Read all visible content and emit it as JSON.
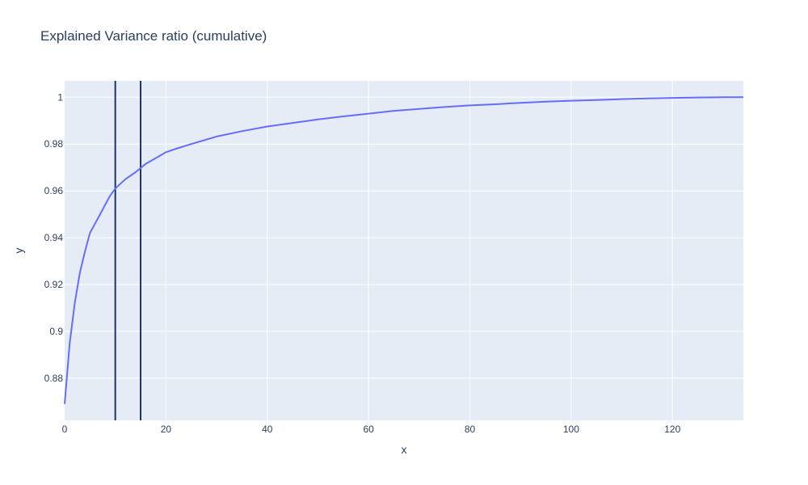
{
  "chart_data": {
    "type": "line",
    "title": "Explained Variance ratio (cumulative)",
    "xlabel": "x",
    "ylabel": "y",
    "xlim": [
      0,
      134
    ],
    "ylim": [
      0.862,
      1.007
    ],
    "grid": true,
    "x_ticks": [
      0,
      20,
      40,
      60,
      80,
      100,
      120
    ],
    "y_ticks": [
      0.88,
      0.9,
      0.92,
      0.94,
      0.96,
      0.98,
      1
    ],
    "y_tick_labels": [
      "0.88",
      "0.9",
      "0.92",
      "0.94",
      "0.96",
      "0.98",
      "1"
    ],
    "vlines": [
      10,
      15
    ],
    "series": [
      {
        "color": "#636efa",
        "x": [
          0,
          1,
          2,
          3,
          4,
          5,
          6,
          7,
          8,
          9,
          10,
          12,
          14,
          16,
          18,
          20,
          22,
          25,
          30,
          35,
          40,
          45,
          50,
          55,
          60,
          65,
          70,
          75,
          80,
          85,
          90,
          95,
          100,
          105,
          110,
          115,
          120,
          125,
          130,
          134
        ],
        "y": [
          0.869,
          0.895,
          0.912,
          0.925,
          0.934,
          0.942,
          0.946,
          0.95,
          0.954,
          0.958,
          0.961,
          0.965,
          0.968,
          0.9715,
          0.974,
          0.9765,
          0.978,
          0.98,
          0.9832,
          0.9855,
          0.9875,
          0.989,
          0.9905,
          0.9918,
          0.993,
          0.9942,
          0.995,
          0.9958,
          0.9965,
          0.997,
          0.9976,
          0.9981,
          0.9985,
          0.9988,
          0.9992,
          0.9995,
          0.9997,
          0.9999,
          1.0,
          1.0
        ]
      }
    ]
  }
}
